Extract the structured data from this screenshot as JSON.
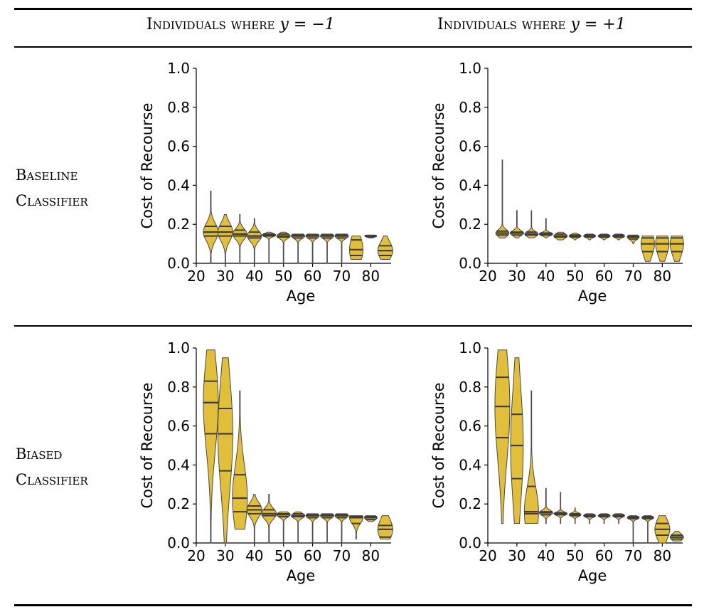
{
  "header": {
    "col1_prefix": "Individuals where",
    "col1_condition": "y = −1",
    "col2_prefix": "Individuals where",
    "col2_condition": "y = +1"
  },
  "rows": [
    {
      "label_line1": "Baseline",
      "label_line2": "Classifier"
    },
    {
      "label_line1": "Biased",
      "label_line2": "Classifier"
    }
  ],
  "colors": {
    "violin_fill": "#E2BF3A",
    "violin_edge": "#4a4a4a",
    "quartile_line": "#3d3d3d"
  },
  "chart_data": [
    {
      "type": "violin",
      "row": "Baseline Classifier",
      "column": "Individuals where y = −1",
      "xlabel": "Age",
      "ylabel": "Cost of Recourse",
      "xlim": [
        20,
        87
      ],
      "ylim": [
        0,
        1
      ],
      "xticks": [
        20,
        30,
        40,
        50,
        60,
        70,
        80
      ],
      "yticks": [
        0.0,
        0.2,
        0.4,
        0.6,
        0.8,
        1.0
      ],
      "groups": [
        {
          "age": 25,
          "min": 0.0,
          "max": 0.37,
          "q1": 0.14,
          "median": 0.16,
          "q3": 0.19,
          "width": 1.0
        },
        {
          "age": 30,
          "min": 0.0,
          "max": 0.25,
          "q1": 0.14,
          "median": 0.16,
          "q3": 0.19,
          "width": 1.0
        },
        {
          "age": 35,
          "min": 0.0,
          "max": 0.25,
          "q1": 0.14,
          "median": 0.15,
          "q3": 0.17,
          "width": 0.95
        },
        {
          "age": 40,
          "min": 0.0,
          "max": 0.23,
          "q1": 0.13,
          "median": 0.14,
          "q3": 0.16,
          "width": 0.95
        },
        {
          "age": 45,
          "min": 0.0,
          "max": 0.16,
          "q1": 0.14,
          "median": 0.145,
          "q3": 0.15,
          "width": 0.9
        },
        {
          "age": 50,
          "min": 0.0,
          "max": 0.16,
          "q1": 0.135,
          "median": 0.14,
          "q3": 0.15,
          "width": 0.9
        },
        {
          "age": 55,
          "min": 0.0,
          "max": 0.15,
          "q1": 0.13,
          "median": 0.14,
          "q3": 0.145,
          "width": 0.9
        },
        {
          "age": 60,
          "min": 0.0,
          "max": 0.15,
          "q1": 0.13,
          "median": 0.14,
          "q3": 0.145,
          "width": 0.9
        },
        {
          "age": 65,
          "min": 0.0,
          "max": 0.15,
          "q1": 0.13,
          "median": 0.14,
          "q3": 0.145,
          "width": 0.9
        },
        {
          "age": 70,
          "min": 0.0,
          "max": 0.15,
          "q1": 0.13,
          "median": 0.14,
          "q3": 0.145,
          "width": 0.9
        },
        {
          "age": 75,
          "min": 0.02,
          "max": 0.14,
          "q1": 0.04,
          "median": 0.07,
          "q3": 0.12,
          "width": 0.9
        },
        {
          "age": 80,
          "min": 0.13,
          "max": 0.145,
          "q1": 0.135,
          "median": 0.14,
          "q3": 0.142,
          "width": 0.8
        },
        {
          "age": 85,
          "min": 0.02,
          "max": 0.14,
          "q1": 0.04,
          "median": 0.065,
          "q3": 0.09,
          "width": 1.0
        }
      ]
    },
    {
      "type": "violin",
      "row": "Baseline Classifier",
      "column": "Individuals where y = +1",
      "xlabel": "Age",
      "ylabel": "Cost of Recourse",
      "xlim": [
        20,
        87
      ],
      "ylim": [
        0,
        1
      ],
      "xticks": [
        20,
        30,
        40,
        50,
        60,
        70,
        80
      ],
      "yticks": [
        0.0,
        0.2,
        0.4,
        0.6,
        0.8,
        1.0
      ],
      "groups": [
        {
          "age": 25,
          "min": 0.13,
          "max": 0.53,
          "q1": 0.145,
          "median": 0.155,
          "q3": 0.165,
          "width": 0.9
        },
        {
          "age": 30,
          "min": 0.13,
          "max": 0.27,
          "q1": 0.145,
          "median": 0.155,
          "q3": 0.16,
          "width": 0.9
        },
        {
          "age": 35,
          "min": 0.13,
          "max": 0.27,
          "q1": 0.145,
          "median": 0.15,
          "q3": 0.16,
          "width": 0.9
        },
        {
          "age": 40,
          "min": 0.13,
          "max": 0.23,
          "q1": 0.145,
          "median": 0.15,
          "q3": 0.155,
          "width": 0.9
        },
        {
          "age": 45,
          "min": 0.12,
          "max": 0.16,
          "q1": 0.135,
          "median": 0.14,
          "q3": 0.15,
          "width": 0.9
        },
        {
          "age": 50,
          "min": 0.12,
          "max": 0.155,
          "q1": 0.135,
          "median": 0.14,
          "q3": 0.145,
          "width": 0.8
        },
        {
          "age": 55,
          "min": 0.12,
          "max": 0.15,
          "q1": 0.135,
          "median": 0.14,
          "q3": 0.145,
          "width": 0.8
        },
        {
          "age": 60,
          "min": 0.12,
          "max": 0.15,
          "q1": 0.135,
          "median": 0.14,
          "q3": 0.145,
          "width": 0.8
        },
        {
          "age": 65,
          "min": 0.12,
          "max": 0.15,
          "q1": 0.135,
          "median": 0.14,
          "q3": 0.145,
          "width": 0.8
        },
        {
          "age": 70,
          "min": 0.1,
          "max": 0.145,
          "q1": 0.125,
          "median": 0.135,
          "q3": 0.14,
          "width": 0.8
        },
        {
          "age": 75,
          "min": 0.01,
          "max": 0.14,
          "q1": 0.06,
          "median": 0.1,
          "q3": 0.13,
          "width": 0.9
        },
        {
          "age": 80,
          "min": 0.01,
          "max": 0.14,
          "q1": 0.06,
          "median": 0.1,
          "q3": 0.13,
          "width": 0.9
        },
        {
          "age": 85,
          "min": 0.01,
          "max": 0.14,
          "q1": 0.06,
          "median": 0.1,
          "q3": 0.13,
          "width": 0.9
        }
      ]
    },
    {
      "type": "violin",
      "row": "Biased Classifier",
      "column": "Individuals where y = −1",
      "xlabel": "Age",
      "ylabel": "Cost of Recourse",
      "xlim": [
        20,
        87
      ],
      "ylim": [
        0,
        1
      ],
      "xticks": [
        20,
        30,
        40,
        50,
        60,
        70,
        80
      ],
      "yticks": [
        0.0,
        0.2,
        0.4,
        0.6,
        0.8,
        1.0
      ],
      "groups": [
        {
          "age": 25,
          "min": 0.0,
          "max": 0.99,
          "q1": 0.56,
          "median": 0.72,
          "q3": 0.83,
          "width": 1.0
        },
        {
          "age": 30,
          "min": 0.0,
          "max": 0.95,
          "q1": 0.37,
          "median": 0.56,
          "q3": 0.69,
          "width": 1.0
        },
        {
          "age": 35,
          "min": 0.07,
          "max": 0.78,
          "q1": 0.16,
          "median": 0.23,
          "q3": 0.35,
          "width": 1.0
        },
        {
          "age": 40,
          "min": 0.0,
          "max": 0.25,
          "q1": 0.15,
          "median": 0.17,
          "q3": 0.19,
          "width": 1.0
        },
        {
          "age": 45,
          "min": 0.0,
          "max": 0.25,
          "q1": 0.14,
          "median": 0.15,
          "q3": 0.17,
          "width": 1.0
        },
        {
          "age": 50,
          "min": 0.0,
          "max": 0.16,
          "q1": 0.135,
          "median": 0.145,
          "q3": 0.15,
          "width": 0.9
        },
        {
          "age": 55,
          "min": 0.0,
          "max": 0.16,
          "q1": 0.135,
          "median": 0.14,
          "q3": 0.15,
          "width": 0.9
        },
        {
          "age": 60,
          "min": 0.0,
          "max": 0.15,
          "q1": 0.13,
          "median": 0.14,
          "q3": 0.145,
          "width": 0.9
        },
        {
          "age": 65,
          "min": 0.0,
          "max": 0.15,
          "q1": 0.13,
          "median": 0.14,
          "q3": 0.145,
          "width": 0.9
        },
        {
          "age": 70,
          "min": 0.0,
          "max": 0.15,
          "q1": 0.13,
          "median": 0.14,
          "q3": 0.145,
          "width": 0.9
        },
        {
          "age": 75,
          "min": 0.02,
          "max": 0.14,
          "q1": 0.1,
          "median": 0.13,
          "q3": 0.135,
          "width": 0.9
        },
        {
          "age": 80,
          "min": 0.11,
          "max": 0.14,
          "q1": 0.12,
          "median": 0.13,
          "q3": 0.135,
          "width": 0.85
        },
        {
          "age": 85,
          "min": 0.02,
          "max": 0.14,
          "q1": 0.03,
          "median": 0.07,
          "q3": 0.09,
          "width": 1.0
        }
      ]
    },
    {
      "type": "violin",
      "row": "Biased Classifier",
      "column": "Individuals where y = +1",
      "xlabel": "Age",
      "ylabel": "Cost of Recourse",
      "xlim": [
        20,
        87
      ],
      "ylim": [
        0,
        1
      ],
      "xticks": [
        20,
        30,
        40,
        50,
        60,
        70,
        80
      ],
      "yticks": [
        0.0,
        0.2,
        0.4,
        0.6,
        0.8,
        1.0
      ],
      "groups": [
        {
          "age": 25,
          "min": 0.1,
          "max": 0.99,
          "q1": 0.54,
          "median": 0.7,
          "q3": 0.85,
          "width": 1.0
        },
        {
          "age": 30,
          "min": 0.1,
          "max": 0.95,
          "q1": 0.33,
          "median": 0.5,
          "q3": 0.66,
          "width": 0.85
        },
        {
          "age": 35,
          "min": 0.1,
          "max": 0.78,
          "q1": 0.15,
          "median": 0.16,
          "q3": 0.29,
          "width": 0.95
        },
        {
          "age": 40,
          "min": 0.1,
          "max": 0.28,
          "q1": 0.145,
          "median": 0.155,
          "q3": 0.16,
          "width": 0.9
        },
        {
          "age": 45,
          "min": 0.1,
          "max": 0.26,
          "q1": 0.145,
          "median": 0.15,
          "q3": 0.155,
          "width": 0.9
        },
        {
          "age": 50,
          "min": 0.1,
          "max": 0.18,
          "q1": 0.14,
          "median": 0.145,
          "q3": 0.15,
          "width": 0.8
        },
        {
          "age": 55,
          "min": 0.1,
          "max": 0.15,
          "q1": 0.135,
          "median": 0.14,
          "q3": 0.145,
          "width": 0.8
        },
        {
          "age": 60,
          "min": 0.1,
          "max": 0.15,
          "q1": 0.135,
          "median": 0.14,
          "q3": 0.145,
          "width": 0.8
        },
        {
          "age": 65,
          "min": 0.1,
          "max": 0.15,
          "q1": 0.135,
          "median": 0.14,
          "q3": 0.145,
          "width": 0.8
        },
        {
          "age": 70,
          "min": 0.0,
          "max": 0.14,
          "q1": 0.125,
          "median": 0.13,
          "q3": 0.135,
          "width": 0.8
        },
        {
          "age": 75,
          "min": 0.0,
          "max": 0.14,
          "q1": 0.125,
          "median": 0.13,
          "q3": 0.135,
          "width": 0.8
        },
        {
          "age": 80,
          "min": 0.0,
          "max": 0.14,
          "q1": 0.04,
          "median": 0.07,
          "q3": 0.1,
          "width": 1.0
        },
        {
          "age": 85,
          "min": 0.01,
          "max": 0.06,
          "q1": 0.02,
          "median": 0.03,
          "q3": 0.04,
          "width": 0.9
        }
      ]
    }
  ]
}
